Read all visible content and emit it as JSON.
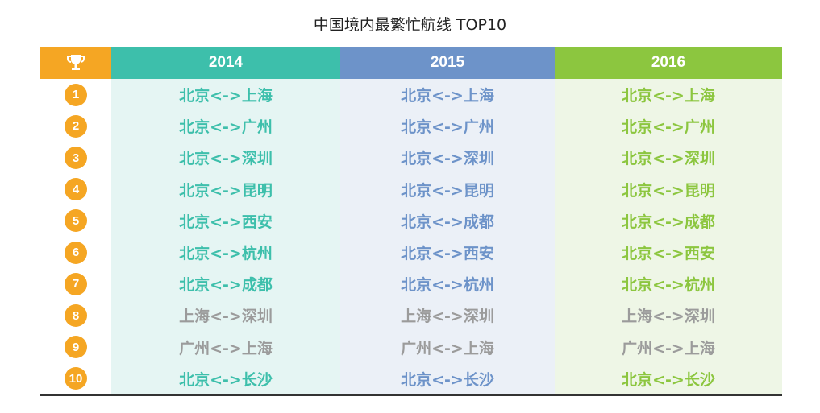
{
  "title": "中国境内最繁忙航线 TOP10",
  "colors": {
    "rank_header": "#f5a623",
    "y2014": "#3dbfab",
    "y2015": "#6d93c9",
    "y2016": "#8cc63f",
    "gray": "#9b9b9b",
    "bg2014": "#e5f5f3",
    "bg2015": "#ebf0f7",
    "bg2016": "#eef6e6"
  },
  "header_icon": "trophy-icon",
  "chart_data": {
    "type": "table",
    "title": "中国境内最繁忙航线 TOP10",
    "columns": [
      "2014",
      "2015",
      "2016"
    ],
    "ranks": [
      "1",
      "2",
      "3",
      "4",
      "5",
      "6",
      "7",
      "8",
      "9",
      "10"
    ],
    "rows": [
      [
        "北京<->上海",
        "北京<->上海",
        "北京<->上海"
      ],
      [
        "北京<->广州",
        "北京<->广州",
        "北京<->广州"
      ],
      [
        "北京<->深圳",
        "北京<->深圳",
        "北京<->深圳"
      ],
      [
        "北京<->昆明",
        "北京<->昆明",
        "北京<->昆明"
      ],
      [
        "北京<->西安",
        "北京<->成都",
        "北京<->成都"
      ],
      [
        "北京<->杭州",
        "北京<->西安",
        "北京<->西安"
      ],
      [
        "北京<->成都",
        "北京<->杭州",
        "北京<->杭州"
      ],
      [
        "上海<->深圳",
        "上海<->深圳",
        "上海<->深圳"
      ],
      [
        "广州<->上海",
        "广州<->上海",
        "广州<->上海"
      ],
      [
        "北京<->长沙",
        "北京<->长沙",
        "北京<->长沙"
      ]
    ],
    "gray_rows": [
      "8",
      "9"
    ]
  }
}
